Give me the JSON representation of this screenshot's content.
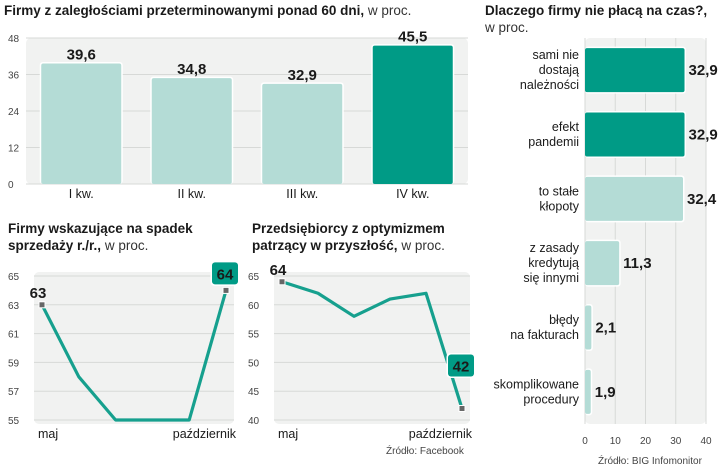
{
  "colors": {
    "dark": "#009b86",
    "light": "#b4dcd6",
    "panel": "#f1f2f1",
    "line": "#16a08e"
  },
  "chart_data": [
    {
      "type": "bar",
      "title": "Firmy z zaległościami przeterminowanymi ponad 60 dni,",
      "unit": "w proc.",
      "categories": [
        "I kw.",
        "II kw.",
        "III kw.",
        "IV kw."
      ],
      "values": [
        39.6,
        34.8,
        32.9,
        45.5
      ],
      "value_labels": [
        "39,6",
        "34,8",
        "32,9",
        "45,5"
      ],
      "highlight": [
        false,
        false,
        false,
        true
      ],
      "yticks": [
        0,
        12,
        24,
        36,
        48
      ],
      "ylim": [
        0,
        48
      ]
    },
    {
      "type": "bar",
      "orientation": "horizontal",
      "title": "Dlaczego firmy nie płacą na czas?,",
      "unit": "w proc.",
      "categories": [
        [
          "sami nie",
          "dostają",
          "należności"
        ],
        [
          "efekt",
          "pandemii"
        ],
        [
          "to stałe",
          "kłopoty"
        ],
        [
          "z zasady",
          "kredytują",
          "się innymi"
        ],
        [
          "błędy",
          "na fakturach"
        ],
        [
          "skomplikowane",
          "procedury"
        ]
      ],
      "values": [
        32.9,
        32.9,
        32.4,
        11.3,
        2.1,
        1.9
      ],
      "value_labels": [
        "32,9",
        "32,9",
        "32,4",
        "11,3",
        "2,1",
        "1,9"
      ],
      "highlight": [
        true,
        true,
        false,
        false,
        false,
        false
      ],
      "xticks": [
        0,
        10,
        20,
        30,
        40
      ],
      "xlim": [
        0,
        40
      ],
      "source": "Źródło: BIG Infomonitor"
    },
    {
      "type": "line",
      "title": [
        "Firmy wskazujące na spadek",
        "sprzedaży r./r.,"
      ],
      "unit": "w proc.",
      "values": [
        63,
        58,
        55,
        55,
        55,
        64
      ],
      "start_label": "63",
      "end_label": "64",
      "xlabels": [
        "maj",
        "październik"
      ],
      "yticks": [
        55,
        57,
        59,
        61,
        63,
        65
      ],
      "ylim": [
        55,
        65
      ]
    },
    {
      "type": "line",
      "title": [
        "Przedsiębiorcy z optymizmem",
        "patrzący w przyszłość,"
      ],
      "unit": "w proc.",
      "values": [
        64,
        62,
        58,
        61,
        62,
        42
      ],
      "start_label": "64",
      "end_label": "42",
      "xlabels": [
        "maj",
        "październik"
      ],
      "yticks": [
        40,
        45,
        50,
        55,
        60,
        65
      ],
      "ylim": [
        40,
        65
      ],
      "source": "Źródło: Facebook"
    }
  ]
}
